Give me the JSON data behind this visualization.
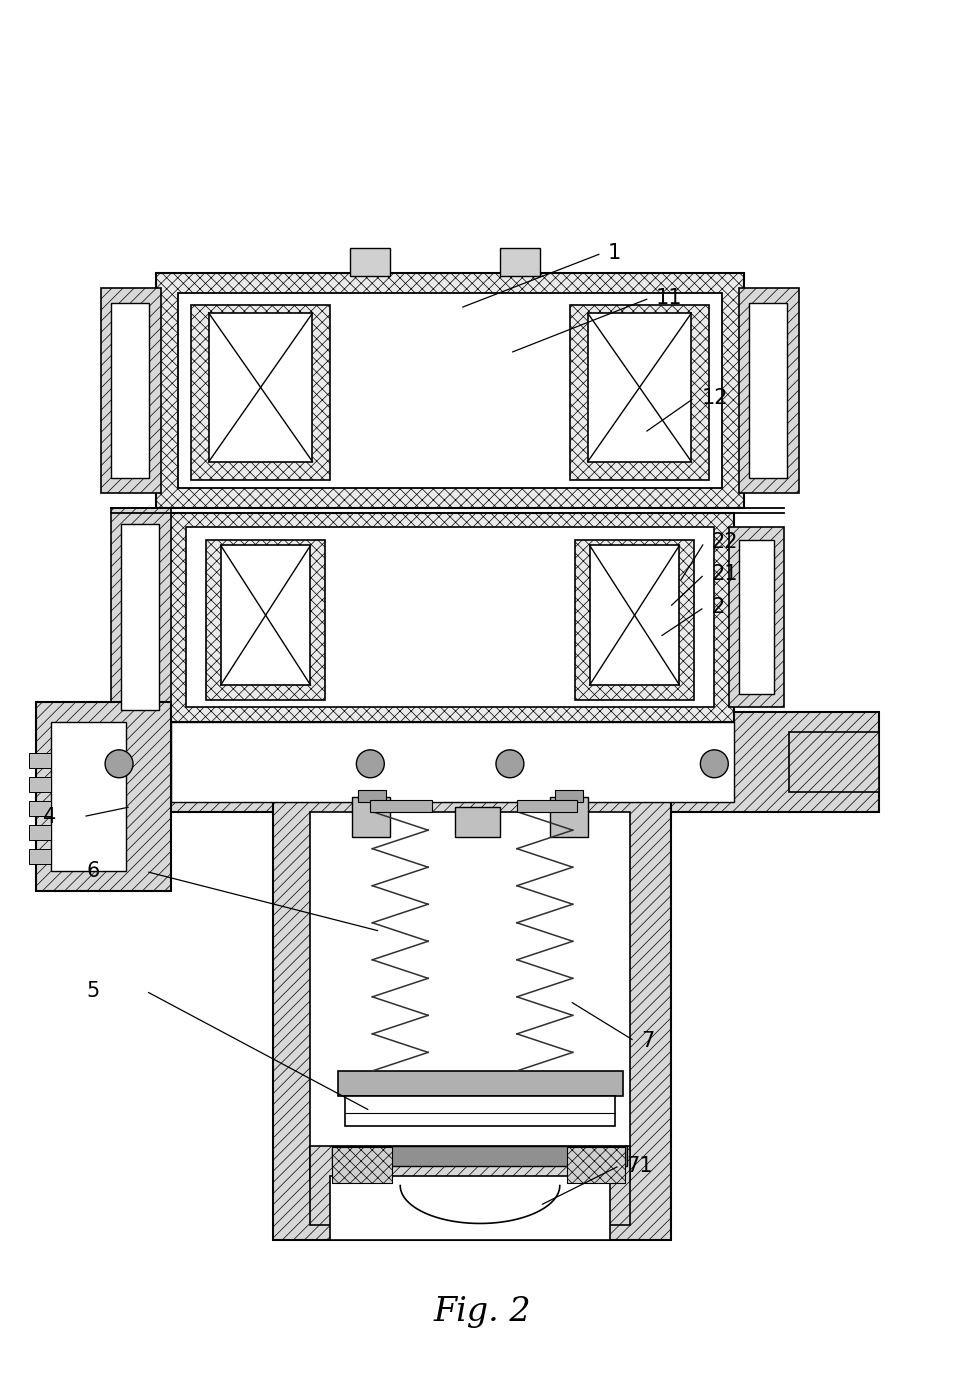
{
  "title": "Fig. 2",
  "fig_width": 9.65,
  "fig_height": 13.82,
  "bg_color": "#ffffff",
  "lw_main": 1.5,
  "lw_thin": 1.0,
  "hatch_cross": "xxx",
  "hatch_diag": "///",
  "gray_fill": "#e8e8e8",
  "white": "#ffffff",
  "dark_gray": "#606060"
}
